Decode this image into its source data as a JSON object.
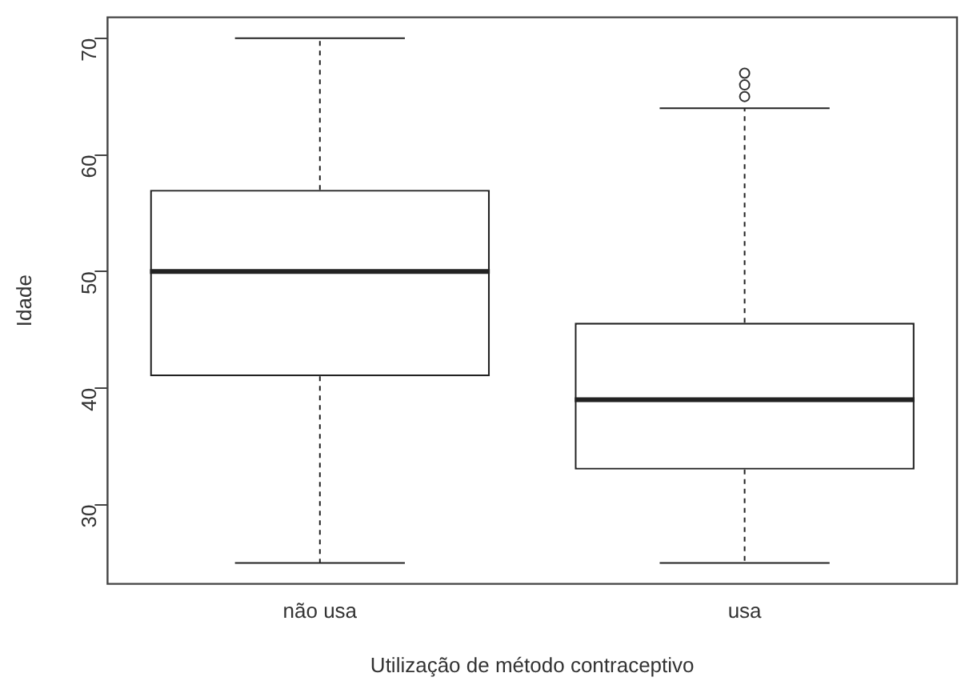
{
  "chart_data": {
    "type": "box",
    "xlabel": "Utilização de método contraceptivo",
    "ylabel": "Idade",
    "categories": [
      "não usa",
      "usa"
    ],
    "boxes": [
      {
        "low": 25,
        "q1": 41,
        "median": 50,
        "q3": 57,
        "high": 70
      },
      {
        "low": 25,
        "q1": 33,
        "median": 39,
        "q3": 45.6,
        "high": 64,
        "outliers": [
          65,
          66,
          67
        ]
      }
    ],
    "ylim": [
      23.2,
      71.8
    ],
    "yticks": [
      30,
      40,
      50,
      60,
      70
    ],
    "grid": false,
    "legend": false
  }
}
